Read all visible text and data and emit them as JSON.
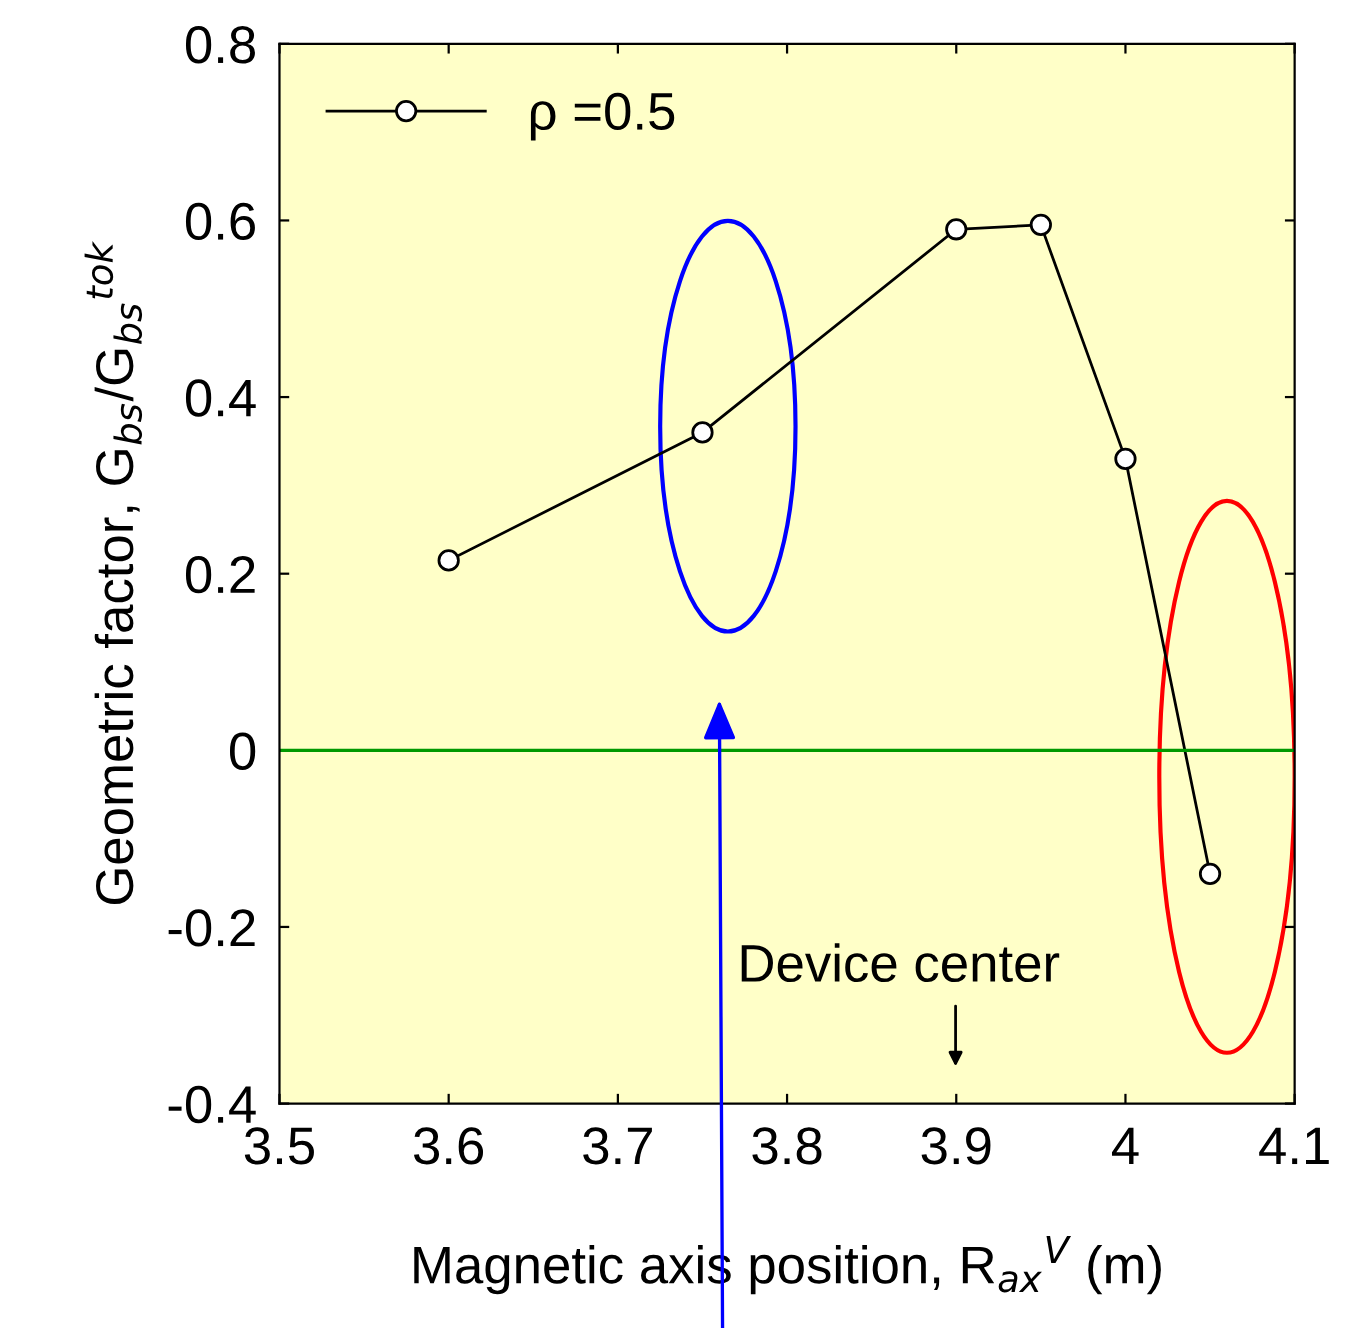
{
  "chart_data": {
    "type": "line",
    "xlabel": "Magnetic axis position, R$_{ax}$$^{V}$ (m)",
    "ylabel": "Geometric factor, G$_{bs}$/G$_{bs}$$^{tok}$",
    "x": [
      3.6,
      3.75,
      3.9,
      3.95,
      4.0,
      4.05
    ],
    "series": [
      {
        "name": "ρ =0.5",
        "color": "#000000",
        "values": [
          0.215,
          0.36,
          0.59,
          0.595,
          0.33,
          -0.14
        ]
      }
    ],
    "xlim": [
      3.5,
      4.1
    ],
    "xticks": [
      3.5,
      3.6,
      3.7,
      3.8,
      3.9,
      {
        "value": 4.0,
        "label": "4"
      },
      4.1
    ],
    "ylim": [
      -0.4,
      0.8
    ],
    "yticks": [
      -0.4,
      -0.2,
      {
        "value": 0,
        "label": "0"
      },
      0.2,
      0.4,
      0.6,
      0.8
    ],
    "ref_lines": [
      {
        "axis": "y",
        "value": 0,
        "color": "#009900"
      }
    ],
    "annotations": [
      "Device center"
    ],
    "marker": "circle",
    "line_style": "solid",
    "legend": "top left",
    "grid": false
  }
}
